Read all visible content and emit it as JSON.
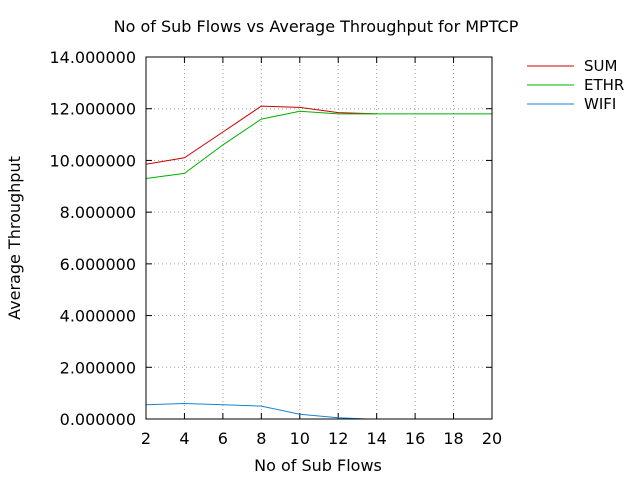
{
  "chart_data": {
    "type": "line",
    "title": "No of Sub Flows vs Average Throughput for MPTCP",
    "xlabel": "No of Sub Flows",
    "ylabel": "Average Throughput",
    "xlim": [
      2,
      20
    ],
    "ylim": [
      0,
      14
    ],
    "x_ticks": [
      "2",
      "4",
      "6",
      "8",
      "10",
      "12",
      "14",
      "16",
      "18",
      "20"
    ],
    "y_ticks": [
      "0.000000",
      "2.000000",
      "4.000000",
      "6.000000",
      "8.000000",
      "10.000000",
      "12.000000",
      "14.000000"
    ],
    "grid": true,
    "legend_position": "outside-top-right",
    "series": [
      {
        "name": "SUM",
        "color": "#cc0000",
        "x": [
          2,
          4,
          6,
          8,
          10,
          12,
          14
        ],
        "y": [
          9.85,
          10.1,
          11.1,
          12.1,
          12.05,
          11.85,
          11.8
        ]
      },
      {
        "name": "ETHR",
        "color": "#00b000",
        "x": [
          2,
          4,
          6,
          8,
          10,
          12,
          14,
          16,
          18,
          20
        ],
        "y": [
          9.3,
          9.5,
          10.6,
          11.6,
          11.9,
          11.8,
          11.8,
          11.8,
          11.8,
          11.8
        ]
      },
      {
        "name": "WIFI",
        "color": "#1a80d0",
        "x": [
          2,
          4,
          6,
          8,
          10,
          12,
          13.5
        ],
        "y": [
          0.55,
          0.6,
          0.55,
          0.5,
          0.18,
          0.05,
          0.0
        ]
      }
    ]
  }
}
